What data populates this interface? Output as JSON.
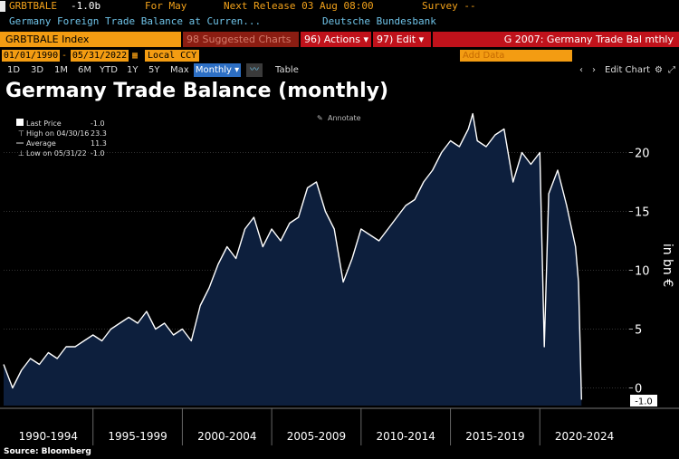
{
  "header": {
    "ticker": "GRBTBALE",
    "last": "-1.0b",
    "for_label": "For May",
    "next_release": "Next Release 03 Aug 08:00",
    "survey": "Survey --",
    "description": "Germany Foreign Trade Balance at Curren...",
    "source_name": "Deutsche Bundesbank"
  },
  "toolbar": {
    "index": "GRBTBALE Index",
    "suggested": "98 Suggested Charts",
    "actions": "96) Actions ▾",
    "edit": "97) Edit ▾",
    "chart_name": "G 2007: Germany Trade Bal mthly"
  },
  "controls": {
    "start_date": "01/01/1990",
    "end_date": "05/31/2022",
    "currency": "Local CCY",
    "add_data": "Add Data"
  },
  "ranges": {
    "items": [
      "1D",
      "3D",
      "1M",
      "6M",
      "YTD",
      "1Y",
      "5Y",
      "Max"
    ],
    "frequency": "Monthly ▾",
    "table": "Table",
    "edit_chart": "Edit Chart"
  },
  "colors": {
    "accent_orange": "#f3a21a",
    "red_bar": "#c0121b",
    "area_fill": "#0d1f3d",
    "line": "#ffffff"
  },
  "chart_data": {
    "type": "area",
    "title": "Germany Trade Balance (monthly)",
    "ylabel": "in bn €",
    "ylim": [
      -1.5,
      23.5
    ],
    "yticks": [
      0,
      5,
      10,
      15,
      20
    ],
    "x_period_labels": [
      "1990-1994",
      "1995-1999",
      "2000-2004",
      "2005-2009",
      "2010-2014",
      "2015-2019",
      "2020-2024"
    ],
    "annotate_label": "Annotate",
    "last_value_label": "-1.0",
    "legend": [
      {
        "label": "Last Price",
        "value": "-1.0"
      },
      {
        "label": "High on 04/30/16",
        "value": "23.3"
      },
      {
        "label": "Average",
        "value": "11.3"
      },
      {
        "label": "Low on 05/31/22",
        "value": "-1.0"
      }
    ],
    "x": [
      "1990-01",
      "1990-07",
      "1991-01",
      "1991-07",
      "1992-01",
      "1992-07",
      "1993-01",
      "1993-07",
      "1994-01",
      "1994-07",
      "1995-01",
      "1995-07",
      "1996-01",
      "1996-07",
      "1997-01",
      "1997-07",
      "1998-01",
      "1998-07",
      "1999-01",
      "1999-07",
      "2000-01",
      "2000-07",
      "2001-01",
      "2001-07",
      "2002-01",
      "2002-07",
      "2003-01",
      "2003-07",
      "2004-01",
      "2004-07",
      "2005-01",
      "2005-07",
      "2006-01",
      "2006-07",
      "2007-01",
      "2007-07",
      "2008-01",
      "2008-07",
      "2009-01",
      "2009-07",
      "2010-01",
      "2010-07",
      "2011-01",
      "2011-07",
      "2012-01",
      "2012-07",
      "2013-01",
      "2013-07",
      "2014-01",
      "2014-07",
      "2015-01",
      "2015-07",
      "2016-01",
      "2016-04",
      "2016-07",
      "2017-01",
      "2017-07",
      "2018-01",
      "2018-07",
      "2019-01",
      "2019-07",
      "2020-01",
      "2020-04",
      "2020-07",
      "2021-01",
      "2021-07",
      "2022-01",
      "2022-03",
      "2022-05"
    ],
    "values": [
      2.0,
      0.0,
      1.5,
      2.5,
      2.0,
      3.0,
      2.5,
      3.5,
      3.5,
      4.0,
      4.5,
      4.0,
      5.0,
      5.5,
      6.0,
      5.5,
      6.5,
      5.0,
      5.5,
      4.5,
      5.0,
      4.0,
      7.0,
      8.5,
      10.5,
      12.0,
      11.0,
      13.5,
      14.5,
      12.0,
      13.5,
      12.5,
      14.0,
      14.5,
      17.0,
      17.5,
      15.0,
      13.5,
      9.0,
      11.0,
      13.5,
      13.0,
      12.5,
      13.5,
      14.5,
      15.5,
      16.0,
      17.5,
      18.5,
      20.0,
      21.0,
      20.5,
      22.0,
      23.3,
      21.0,
      20.5,
      21.5,
      22.0,
      17.5,
      20.0,
      19.0,
      20.0,
      3.5,
      16.5,
      18.5,
      15.5,
      12.0,
      9.0,
      -1.0
    ]
  },
  "footer": {
    "source": "Source: Bloomberg"
  }
}
